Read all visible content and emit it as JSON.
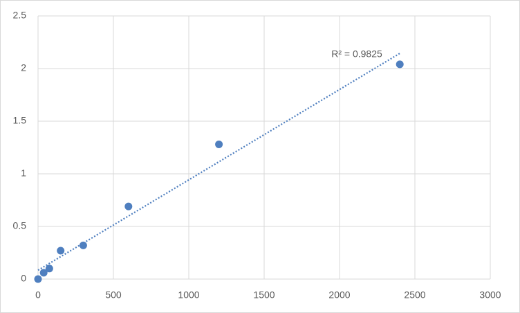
{
  "chart_data": {
    "type": "scatter",
    "x": [
      0,
      37.5,
      75,
      150,
      300,
      600,
      1200,
      2400
    ],
    "series": [
      {
        "color": "#4f7fbf",
        "values": [
          0,
          0.06,
          0.1,
          0.27,
          0.32,
          0.69,
          1.28,
          2.04
        ]
      }
    ],
    "xlim": [
      0,
      3000
    ],
    "xticks": [
      0,
      500,
      1000,
      1500,
      2000,
      2500,
      3000
    ],
    "ylim": [
      0,
      2.5
    ],
    "yticks": [
      0,
      0.5,
      1,
      1.5,
      2,
      2.5
    ],
    "grid": true,
    "trendline": "linear",
    "annotation": "R² = 0.9825"
  }
}
